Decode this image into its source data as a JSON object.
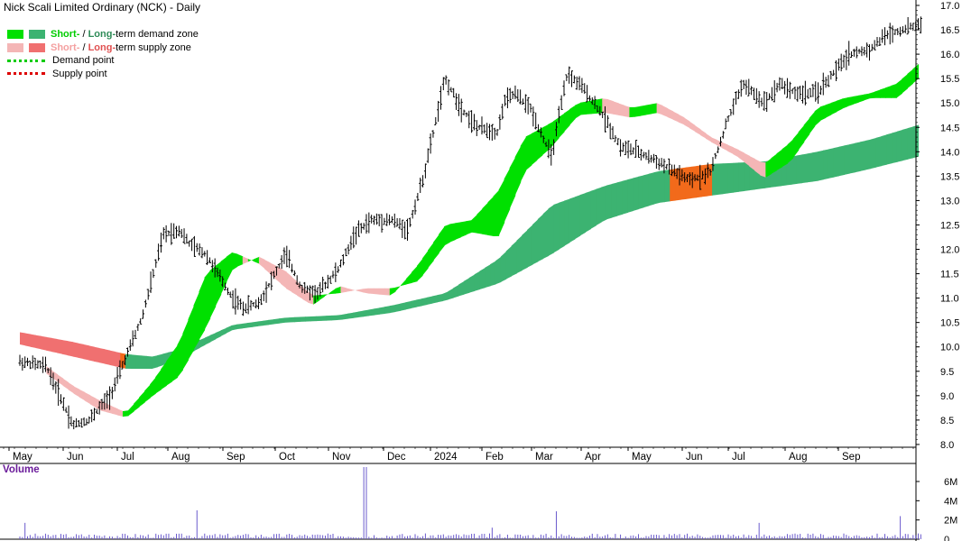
{
  "header": {
    "title": "Nick Scali Limited Ordinary (NCK) - Daily"
  },
  "legend": {
    "items": [
      {
        "short_label": "Short-",
        "separator": " / ",
        "long_label": "Long-",
        "suffix": "term demand zone",
        "short_color": "#00e000",
        "long_color": "#3cb371"
      },
      {
        "short_label": "Short-",
        "separator": " / ",
        "long_label": "Long-",
        "suffix": "term supply zone",
        "short_color": "#f4b6b6",
        "long_color": "#f07070"
      },
      {
        "label": "Demand point",
        "color": "#00cc00"
      },
      {
        "label": "Supply point",
        "color": "#dd0000"
      }
    ]
  },
  "chart_data": {
    "type": "line",
    "title": "Nick Scali Limited Ordinary (NCK) - Daily",
    "x_tick_labels": [
      "May",
      "Jun",
      "Jul",
      "Aug",
      "Sep",
      "Oct",
      "Nov",
      "Dec",
      "2024",
      "Feb",
      "Mar",
      "Apr",
      "May",
      "Jun",
      "Jul",
      "Aug",
      "Sep"
    ],
    "y_tick_labels": [
      "17.0",
      "16.5",
      "16.0",
      "15.5",
      "15.0",
      "14.5",
      "14.0",
      "13.5",
      "13.0",
      "12.5",
      "12.0",
      "11.5",
      "11.0",
      "10.5",
      "10.0",
      "9.5",
      "9.0",
      "8.5",
      "8.0"
    ],
    "ylim": [
      7.95,
      17.0
    ],
    "price_series": {
      "name": "Price",
      "x_month_index": [
        0,
        0.5,
        1,
        1.3,
        1.7,
        2,
        2.3,
        2.7,
        3,
        3.2,
        3.5,
        4,
        4.2,
        4.5,
        5,
        5.3,
        5.6,
        6,
        6.3,
        6.6,
        7,
        7.3,
        7.6,
        8,
        8.3,
        8.6,
        9,
        9.1,
        9.3,
        9.6,
        10,
        10.3,
        10.6,
        11,
        11.3,
        11.6,
        12,
        12.3,
        12.6,
        13,
        13.3,
        13.6,
        14,
        14.3,
        14.6,
        15,
        15.3,
        15.6,
        16,
        16.3,
        16.6,
        16.9
      ],
      "values": [
        9.7,
        9.6,
        8.4,
        8.5,
        9.0,
        9.8,
        10.6,
        12.3,
        12.4,
        12.1,
        11.9,
        11.0,
        10.8,
        10.9,
        11.9,
        11.2,
        11.1,
        11.6,
        12.3,
        12.6,
        12.6,
        12.4,
        13.5,
        15.5,
        14.9,
        14.5,
        14.4,
        15.0,
        15.2,
        14.9,
        13.9,
        15.6,
        15.3,
        14.7,
        14.1,
        14.0,
        13.8,
        13.6,
        13.4,
        13.6,
        14.6,
        15.4,
        15.0,
        15.4,
        15.2,
        15.2,
        15.6,
        16.0,
        16.1,
        16.4,
        16.5,
        16.6
      ]
    },
    "long_term_zone": {
      "x_month_index": [
        0,
        1,
        2,
        2.5,
        3,
        4,
        5,
        6,
        7,
        8,
        9,
        10,
        11,
        12,
        13,
        14,
        15,
        16,
        16.9
      ],
      "upper": [
        10.3,
        10.1,
        9.85,
        9.8,
        9.95,
        10.45,
        10.6,
        10.65,
        10.85,
        11.1,
        11.8,
        12.9,
        13.3,
        13.6,
        13.75,
        13.8,
        14.0,
        14.25,
        14.55
      ],
      "lower": [
        10.05,
        9.8,
        9.55,
        9.55,
        9.75,
        10.35,
        10.5,
        10.55,
        10.7,
        10.95,
        11.3,
        11.9,
        12.6,
        12.95,
        13.1,
        13.25,
        13.4,
        13.65,
        13.9
      ]
    },
    "short_term_zone": {
      "x_month_index": [
        0.5,
        1,
        1.5,
        2,
        2.5,
        3,
        3.5,
        4,
        4.5,
        5,
        5.5,
        6,
        6.5,
        7,
        7.5,
        8,
        8.5,
        9,
        9.5,
        10,
        10.5,
        11,
        11.5,
        12,
        12.5,
        13,
        13.5,
        14,
        14.5,
        15,
        15.5,
        16,
        16.5,
        16.9
      ],
      "a": [
        9.6,
        9.2,
        8.9,
        8.65,
        9.3,
        10.1,
        11.5,
        11.95,
        11.7,
        11.2,
        10.85,
        11.25,
        11.1,
        11.05,
        11.7,
        12.5,
        12.6,
        13.2,
        14.3,
        14.6,
        15.0,
        15.1,
        14.9,
        15.0,
        14.7,
        14.3,
        14.05,
        13.75,
        14.2,
        14.9,
        15.1,
        15.2,
        15.4,
        15.8
      ],
      "b": [
        9.45,
        9.05,
        8.7,
        8.55,
        9.0,
        9.4,
        10.4,
        11.6,
        11.85,
        11.55,
        11.05,
        11.1,
        11.2,
        11.2,
        11.35,
        12.1,
        12.35,
        12.25,
        13.6,
        14.1,
        14.75,
        14.8,
        14.7,
        14.8,
        14.55,
        14.2,
        13.9,
        13.45,
        13.8,
        14.6,
        14.9,
        15.1,
        15.1,
        15.5
      ]
    },
    "volume": {
      "label": "Volume",
      "y_tick_labels": [
        "6M",
        "4M",
        "2M",
        "0"
      ],
      "ylim": [
        0,
        7.5
      ],
      "spikes": [
        {
          "x_month_index": 0.1,
          "value": 1.7
        },
        {
          "x_month_index": 3.35,
          "value": 3.0
        },
        {
          "x_month_index": 6.5,
          "value": 7.5
        },
        {
          "x_month_index": 8.9,
          "value": 1.2
        },
        {
          "x_month_index": 10.1,
          "value": 2.9
        },
        {
          "x_month_index": 13.9,
          "value": 1.7
        },
        {
          "x_month_index": 16.55,
          "value": 2.4
        }
      ],
      "base_value": 0.4
    },
    "legend_position": "top-left",
    "grid": false
  }
}
